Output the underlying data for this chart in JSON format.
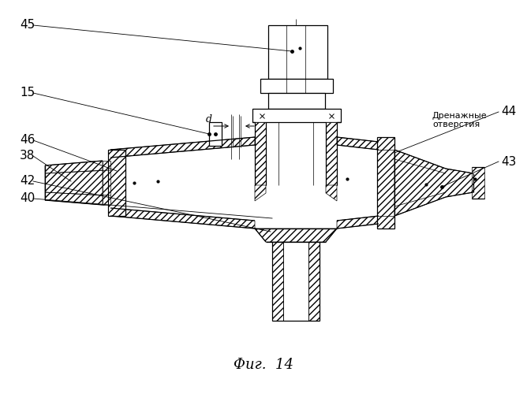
{
  "bg_color": "#ffffff",
  "line_color": "#000000",
  "title": "Фиг.  14",
  "drainage_text1": "Дренажные",
  "drainage_text2": "отверстия",
  "d_label": "d",
  "labels": [
    "45",
    "15",
    "46",
    "38",
    "42",
    "40",
    "44",
    "43"
  ]
}
